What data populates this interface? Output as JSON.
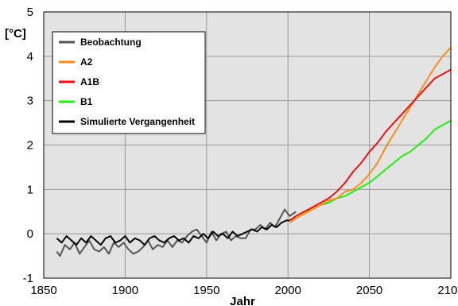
{
  "chart_data": {
    "type": "line",
    "xlabel": "Jahr",
    "ylabel": "[°C]",
    "xlim": [
      1850,
      2100
    ],
    "ylim": [
      -1,
      5
    ],
    "xticks": [
      1850,
      1900,
      1950,
      2000,
      2050,
      2100
    ],
    "yticks": [
      -1,
      0,
      1,
      2,
      3,
      4,
      5
    ],
    "grid": true,
    "legend_position": "top-left",
    "colors": {
      "plot_background": "#e3e3e3",
      "grid": "#9a9a9a"
    },
    "series": [
      {
        "name": "Beobachtung",
        "color": "#555555",
        "x": [
          1858,
          1860,
          1863,
          1866,
          1869,
          1872,
          1875,
          1878,
          1881,
          1884,
          1887,
          1890,
          1893,
          1896,
          1899,
          1902,
          1905,
          1908,
          1911,
          1914,
          1917,
          1920,
          1923,
          1926,
          1929,
          1932,
          1935,
          1938,
          1941,
          1944,
          1947,
          1950,
          1953,
          1956,
          1959,
          1962,
          1965,
          1968,
          1971,
          1974,
          1977,
          1980,
          1983,
          1986,
          1989,
          1992,
          1995,
          1998,
          2001,
          2003,
          2005
        ],
        "y": [
          -0.4,
          -0.5,
          -0.25,
          -0.35,
          -0.2,
          -0.45,
          -0.3,
          -0.15,
          -0.35,
          -0.4,
          -0.3,
          -0.45,
          -0.2,
          -0.3,
          -0.2,
          -0.35,
          -0.45,
          -0.4,
          -0.3,
          -0.15,
          -0.35,
          -0.25,
          -0.3,
          -0.15,
          -0.3,
          -0.15,
          -0.2,
          -0.05,
          0.05,
          0.1,
          -0.05,
          -0.2,
          0.05,
          -0.15,
          0.0,
          0.05,
          -0.15,
          -0.05,
          -0.1,
          -0.1,
          0.1,
          0.1,
          0.2,
          0.1,
          0.25,
          0.15,
          0.35,
          0.55,
          0.4,
          0.45,
          0.5
        ]
      },
      {
        "name": "A2",
        "color": "#ff8c1a",
        "x": [
          2001,
          2005,
          2010,
          2015,
          2020,
          2025,
          2030,
          2035,
          2040,
          2045,
          2050,
          2055,
          2060,
          2065,
          2070,
          2075,
          2080,
          2085,
          2090,
          2095,
          2100
        ],
        "y": [
          0.25,
          0.35,
          0.45,
          0.55,
          0.65,
          0.75,
          0.8,
          0.95,
          1.0,
          1.15,
          1.35,
          1.6,
          1.95,
          2.25,
          2.55,
          2.85,
          3.15,
          3.45,
          3.75,
          4.0,
          4.2
        ]
      },
      {
        "name": "A1B",
        "color": "#ee1111",
        "x": [
          2001,
          2005,
          2010,
          2015,
          2020,
          2025,
          2030,
          2035,
          2040,
          2045,
          2050,
          2055,
          2060,
          2065,
          2070,
          2075,
          2080,
          2085,
          2090,
          2095,
          2100
        ],
        "y": [
          0.3,
          0.4,
          0.5,
          0.6,
          0.7,
          0.8,
          0.95,
          1.15,
          1.4,
          1.6,
          1.85,
          2.05,
          2.3,
          2.5,
          2.7,
          2.9,
          3.1,
          3.3,
          3.5,
          3.6,
          3.7
        ]
      },
      {
        "name": "B1",
        "color": "#22ee11",
        "x": [
          2001,
          2005,
          2010,
          2015,
          2020,
          2025,
          2030,
          2035,
          2040,
          2045,
          2050,
          2055,
          2060,
          2065,
          2070,
          2075,
          2080,
          2085,
          2090,
          2095,
          2100
        ],
        "y": [
          0.3,
          0.4,
          0.5,
          0.55,
          0.65,
          0.7,
          0.8,
          0.85,
          0.95,
          1.05,
          1.15,
          1.3,
          1.45,
          1.6,
          1.75,
          1.85,
          2.0,
          2.15,
          2.35,
          2.45,
          2.55
        ]
      },
      {
        "name": "Simulierte Vergangenheit",
        "color": "#000000",
        "x": [
          1858,
          1861,
          1864,
          1867,
          1870,
          1873,
          1876,
          1879,
          1882,
          1885,
          1888,
          1891,
          1894,
          1897,
          1900,
          1903,
          1906,
          1909,
          1912,
          1915,
          1918,
          1921,
          1924,
          1927,
          1930,
          1933,
          1936,
          1939,
          1942,
          1945,
          1948,
          1951,
          1954,
          1957,
          1960,
          1963,
          1966,
          1969,
          1972,
          1975,
          1978,
          1981,
          1984,
          1987,
          1990,
          1993,
          1996,
          1999,
          2001
        ],
        "y": [
          -0.1,
          -0.2,
          -0.05,
          -0.15,
          -0.25,
          -0.1,
          -0.2,
          -0.05,
          -0.15,
          -0.25,
          -0.1,
          -0.05,
          -0.2,
          -0.15,
          -0.05,
          -0.2,
          -0.1,
          -0.15,
          -0.25,
          -0.1,
          -0.05,
          -0.15,
          -0.2,
          -0.1,
          -0.05,
          -0.15,
          -0.1,
          -0.2,
          -0.05,
          -0.1,
          0.0,
          -0.1,
          0.05,
          -0.05,
          0.0,
          -0.1,
          0.05,
          -0.05,
          0.0,
          0.05,
          0.1,
          0.05,
          0.15,
          0.1,
          0.2,
          0.15,
          0.25,
          0.3,
          0.3
        ]
      }
    ]
  }
}
